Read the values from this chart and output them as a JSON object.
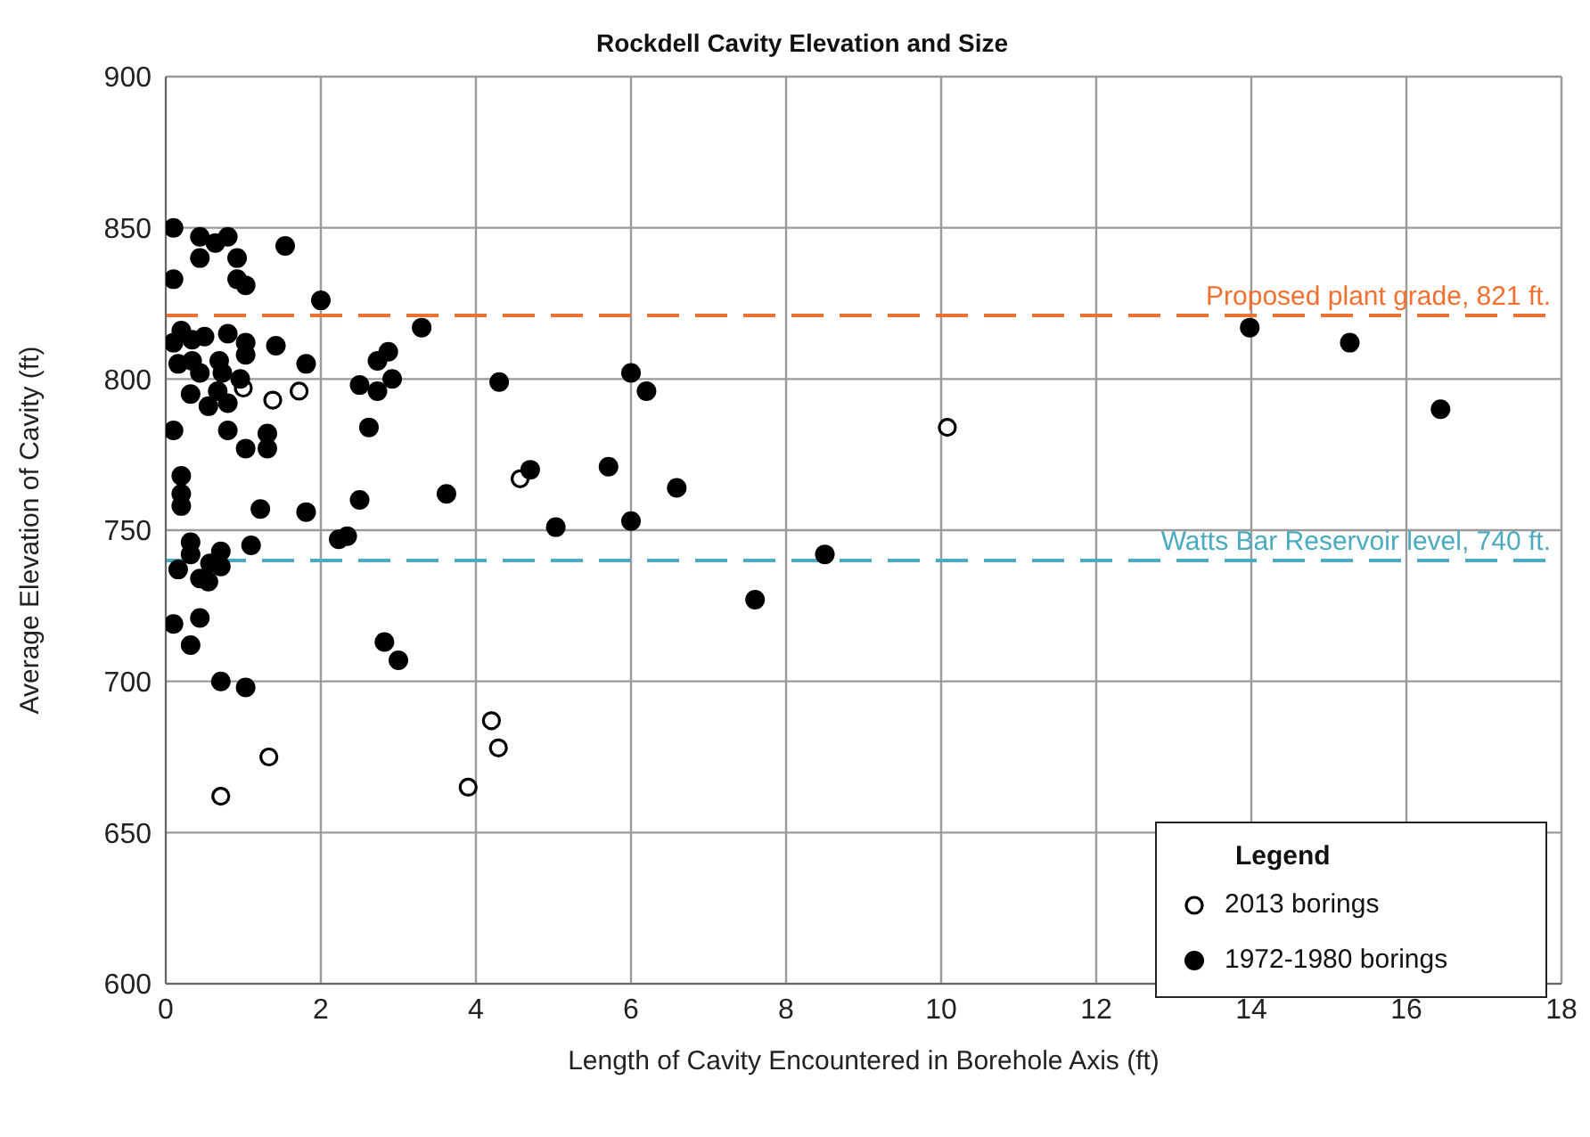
{
  "chart_data": {
    "type": "scatter",
    "title": "Rockdell Cavity  Elevation  and Size",
    "xlabel": "Length of Cavity Encountered in Borehole Axis (ft)",
    "ylabel": "Average Elevation of Cavity (ft)",
    "legend_title": "Legend",
    "xlim": [
      0,
      18
    ],
    "xticks": [
      0,
      2,
      4,
      6,
      8,
      10,
      12,
      14,
      16,
      18
    ],
    "ylim": [
      600,
      900
    ],
    "yticks": [
      600,
      650,
      700,
      750,
      800,
      850,
      900
    ],
    "grid": true,
    "legend": "bottom right",
    "series": [
      {
        "name": "2013 borings",
        "color": "#000000",
        "marker": "circle-open",
        "x": [
          1.0,
          1.38,
          1.72,
          1.33,
          0.71,
          4.57,
          4.2,
          4.29,
          3.9,
          10.08
        ],
        "values": [
          797,
          793,
          796,
          675,
          662,
          767,
          687,
          678,
          665,
          784
        ]
      },
      {
        "name": "1972-1980 borings",
        "color": "#000000",
        "marker": "circle",
        "x": [
          0.1,
          0.44,
          0.64,
          0.8,
          0.44,
          0.92,
          1.54,
          0.1,
          0.92,
          1.03,
          2.0,
          0.2,
          0.1,
          0.34,
          0.5,
          0.8,
          1.03,
          1.03,
          1.42,
          0.16,
          0.34,
          0.44,
          0.69,
          0.73,
          0.96,
          1.81,
          0.32,
          0.67,
          0.8,
          0.55,
          0.1,
          0.8,
          1.03,
          1.31,
          1.31,
          2.5,
          2.73,
          2.92,
          2.73,
          2.87,
          2.62,
          3.3,
          0.2,
          0.2,
          0.2,
          1.22,
          1.81,
          2.5,
          0.32,
          0.32,
          0.71,
          1.1,
          0.16,
          0.57,
          0.71,
          0.44,
          0.55,
          2.23,
          2.34,
          0.1,
          0.44,
          0.32,
          2.82,
          3.0,
          0.71,
          1.03,
          4.3,
          6.0,
          6.2,
          3.62,
          4.7,
          5.71,
          6.59,
          5.03,
          6.0,
          7.6,
          8.5,
          13.98,
          15.27,
          16.44
        ],
        "values": [
          850,
          847,
          845,
          847,
          840,
          840,
          844,
          833,
          833,
          831,
          826,
          816,
          812,
          813,
          814,
          815,
          812,
          808,
          811,
          805,
          806,
          802,
          806,
          802,
          800,
          805,
          795,
          796,
          792,
          791,
          783,
          783,
          777,
          782,
          777,
          798,
          796,
          800,
          806,
          809,
          784,
          817,
          768,
          762,
          758,
          757,
          756,
          760,
          746,
          742,
          743,
          745,
          737,
          739,
          738,
          734,
          733,
          747,
          748,
          719,
          721,
          712,
          713,
          707,
          700,
          698,
          799,
          802,
          796,
          762,
          770,
          771,
          764,
          751,
          753,
          727,
          742,
          817,
          812,
          790
        ]
      }
    ],
    "ref_lines": [
      {
        "axis": "y",
        "value": 821,
        "label": "Proposed plant grade, 821 ft.",
        "color": "#f07030",
        "line_style": "dashed"
      },
      {
        "axis": "y",
        "value": 740,
        "label": "Watts Bar Reservoir level, 740 ft.",
        "color": "#4aaabf",
        "line_style": "dashed"
      }
    ]
  }
}
